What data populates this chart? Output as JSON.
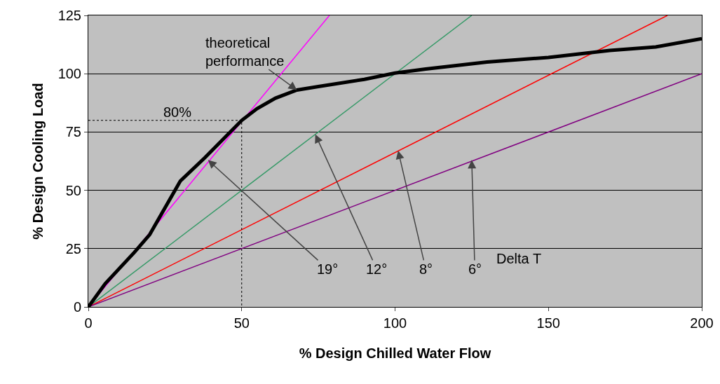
{
  "chart_data": {
    "type": "line",
    "xlabel": "% Design Chilled Water Flow",
    "ylabel": "% Design Cooling Load",
    "xlim": [
      0,
      200
    ],
    "xticks": [
      0,
      50,
      100,
      150,
      200
    ],
    "ylim": [
      0,
      125
    ],
    "yticks": [
      0,
      25,
      50,
      75,
      100,
      125
    ],
    "grid": "y",
    "marker": "none",
    "series": [
      {
        "color": "#ff00ff",
        "x": [
          0,
          78.6
        ],
        "values": [
          0,
          125
        ]
      },
      {
        "color": "#339966",
        "x": [
          0,
          125
        ],
        "values": [
          0,
          125
        ]
      },
      {
        "color": "#ff0000",
        "x": [
          0,
          188.8
        ],
        "values": [
          0,
          125
        ]
      },
      {
        "color": "#800080",
        "x": [
          0,
          200
        ],
        "values": [
          0,
          100
        ]
      },
      {
        "color": "#000000",
        "x": [
          0,
          50,
          50
        ],
        "values": [
          80,
          80,
          0
        ],
        "line_style": "dotted"
      },
      {
        "color": "#000000",
        "x": [
          0,
          5.5,
          15,
          20,
          30,
          38,
          50,
          55,
          61,
          68,
          75,
          90,
          100,
          110,
          130,
          150,
          170,
          185,
          200
        ],
        "values": [
          0,
          10,
          23.4,
          31,
          54,
          64,
          80,
          85,
          89.5,
          93,
          94.5,
          97.6,
          100.3,
          102,
          105,
          107,
          110,
          111.5,
          115
        ]
      }
    ],
    "annotations": [
      "80%",
      {
        "text": "theoretical performance",
        "x": 68,
        "y": 93
      },
      {
        "text": "19°",
        "x": 39,
        "y": 63
      },
      {
        "text": "12°",
        "x": 74,
        "y": 74
      },
      {
        "text": "8°",
        "x": 101,
        "y": 67
      },
      {
        "text": "6°",
        "x": 125,
        "y": 63
      },
      "Delta T"
    ]
  }
}
